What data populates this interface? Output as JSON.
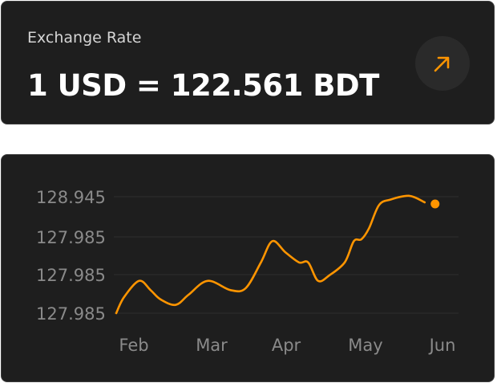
{
  "rate_card": {
    "label": "Exchange Rate",
    "value": "1 USD = 122.561 BDT",
    "trend_icon": "arrow-up-right-icon"
  },
  "colors": {
    "accent": "#ff9500",
    "card_bg": "#1e1e1e",
    "grid": "#2e2e2e",
    "tick_text": "#8a8a8a"
  },
  "chart_data": {
    "type": "line",
    "title": "",
    "xlabel": "",
    "ylabel": "",
    "y_tick_labels": [
      "128.945",
      "127.985",
      "127.985",
      "127.985"
    ],
    "x_tick_labels": [
      "Feb",
      "Mar",
      "Apr",
      "May",
      "Jun"
    ],
    "grid": "horizontal",
    "legend": "none",
    "series": [
      {
        "color": "#ff9500",
        "t": [
          0.0,
          0.1,
          0.3,
          0.45,
          0.58,
          0.78,
          0.95,
          1.2,
          1.5,
          1.7,
          1.9,
          2.05,
          2.22,
          2.4,
          2.52,
          2.65,
          2.8,
          3.0,
          3.12,
          3.22,
          3.32,
          3.45,
          3.6,
          3.85,
          4.05
        ],
        "v": [
          0.0,
          0.17,
          0.35,
          0.25,
          0.15,
          0.09,
          0.2,
          0.35,
          0.25,
          0.27,
          0.55,
          0.78,
          0.66,
          0.55,
          0.55,
          0.35,
          0.41,
          0.55,
          0.78,
          0.8,
          0.92,
          1.17,
          1.23,
          1.27,
          1.2
        ],
        "end_marker": true
      }
    ]
  }
}
